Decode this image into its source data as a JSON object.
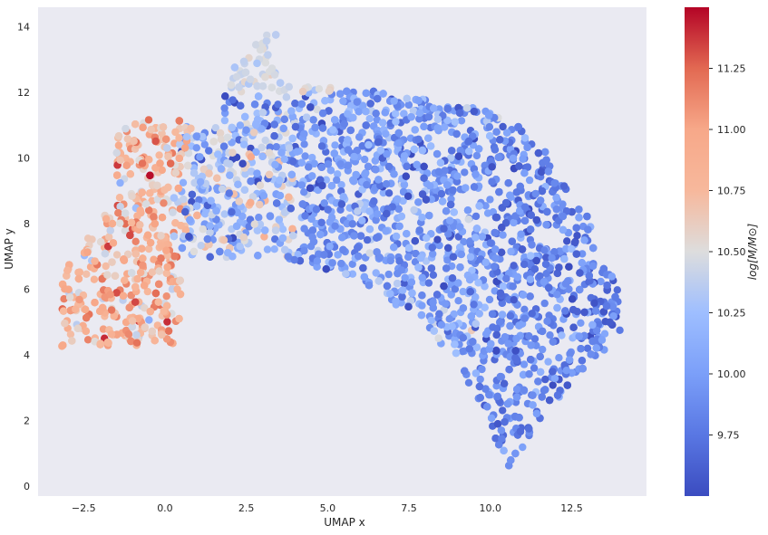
{
  "chart_data": {
    "type": "scatter",
    "xlabel": "UMAP x",
    "ylabel": "UMAP y",
    "xlim": [
      -3.9,
      14.8
    ],
    "ylim": [
      -0.3,
      14.6
    ],
    "xticks": [
      -2.5,
      0.0,
      2.5,
      5.0,
      7.5,
      10.0,
      12.5
    ],
    "xtick_labels": [
      "−2.5",
      "0.0",
      "2.5",
      "5.0",
      "7.5",
      "10.0",
      "12.5"
    ],
    "yticks": [
      0,
      2,
      4,
      6,
      8,
      10,
      12,
      14
    ],
    "ytick_labels": [
      "0",
      "2",
      "4",
      "6",
      "8",
      "10",
      "12",
      "14"
    ],
    "grid": false,
    "background": "#eaeaf2",
    "colorbar": {
      "label": "log[M/M⊙]",
      "colormap": "coolwarm",
      "range": [
        9.5,
        11.5
      ],
      "ticks": [
        9.75,
        10.0,
        10.25,
        10.5,
        10.75,
        11.0,
        11.25
      ],
      "tick_labels": [
        "9.75",
        "10.00",
        "10.25",
        "10.50",
        "10.75",
        "11.00",
        "11.25"
      ]
    },
    "point_density": {
      "description": "Dense cloud of several thousand galaxies forming an arc; blue (low mass) dominates the large right region, red/orange (high mass) concentrated on the left tip and upper-left patches",
      "regions": [
        {
          "x": [
            -3.2,
            0.5
          ],
          "y": [
            4.0,
            11.2
          ],
          "value_mean": 10.85,
          "value_spread": 0.35
        },
        {
          "x": [
            0.0,
            4.0
          ],
          "y": [
            6.5,
            11.5
          ],
          "value_mean": 10.2,
          "value_spread": 0.45
        },
        {
          "x": [
            1.8,
            5.5
          ],
          "y": [
            12.0,
            14.2
          ],
          "value_mean": 10.45,
          "value_spread": 0.1
        },
        {
          "x": [
            4.0,
            10.0
          ],
          "y": [
            4.0,
            12.0
          ],
          "value_mean": 9.95,
          "value_spread": 0.3
        },
        {
          "x": [
            9.0,
            14.0
          ],
          "y": [
            0.3,
            11.0
          ],
          "value_mean": 9.8,
          "value_spread": 0.25
        }
      ]
    }
  }
}
